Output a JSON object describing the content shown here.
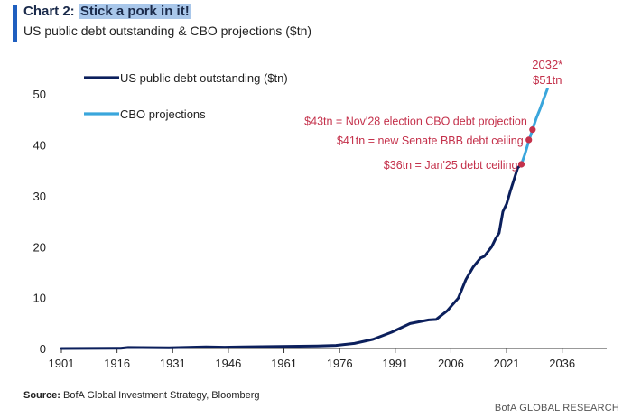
{
  "header": {
    "chart_label": "Chart 2:",
    "title_highlight": "Stick a pork in it!",
    "subtitle": "US public debt outstanding & CBO projections ($tn)"
  },
  "footer": {
    "source_label": "Source:",
    "source_text": "BofA Global Investment Strategy, Bloomberg",
    "brand": "BofA GLOBAL RESEARCH"
  },
  "colors": {
    "actual": "#0b1f5c",
    "projection": "#3aa6dc",
    "annotation": "#c4314b",
    "axis": "#333333"
  },
  "chart_data": {
    "type": "line",
    "title": "US public debt outstanding & CBO projections ($tn)",
    "xlabel": "",
    "ylabel": "",
    "xlim": [
      1901,
      2048
    ],
    "ylim": [
      0,
      55
    ],
    "xticks": [
      "1901",
      "1916",
      "1931",
      "1946",
      "1961",
      "1976",
      "1991",
      "2006",
      "2021",
      "2036"
    ],
    "yticks": [
      "0",
      "10",
      "20",
      "30",
      "40",
      "50"
    ],
    "legend": [
      "US public debt outstanding ($tn)",
      "CBO projections"
    ],
    "series": [
      {
        "name": "US public debt outstanding ($tn)",
        "x": [
          1901,
          1917,
          1919,
          1930,
          1940,
          1945,
          1950,
          1960,
          1970,
          1975,
          1980,
          1985,
          1990,
          1995,
          2000,
          2002,
          2005,
          2008,
          2010,
          2012,
          2014,
          2015,
          2017,
          2018,
          2019,
          2020,
          2021,
          2022,
          2023,
          2024,
          2025
        ],
        "values": [
          0,
          0.05,
          0.2,
          0.15,
          0.3,
          0.25,
          0.3,
          0.4,
          0.5,
          0.6,
          1.0,
          1.8,
          3.2,
          4.9,
          5.6,
          5.7,
          7.4,
          9.9,
          13.5,
          16.0,
          17.8,
          18.1,
          20.0,
          21.5,
          22.7,
          26.9,
          28.4,
          30.9,
          33.2,
          35.5,
          36.2
        ]
      },
      {
        "name": "CBO projections",
        "x": [
          2025,
          2026,
          2027,
          2028,
          2029,
          2030,
          2031,
          2032
        ],
        "values": [
          36.2,
          38.3,
          40.8,
          43.0,
          45.2,
          47.0,
          49.0,
          51.0
        ]
      }
    ],
    "points": [
      {
        "x": 2025,
        "y": 36.2,
        "label": "$36tn = Jan'25 debt ceiling"
      },
      {
        "x": 2027,
        "y": 41.0,
        "label": "$41tn = new Senate BBB debt ceiling"
      },
      {
        "x": 2028,
        "y": 43.0,
        "label": "$43tn = Nov'28 election CBO debt projection"
      }
    ],
    "end_label": {
      "x": 2032,
      "y": 51.0,
      "line1": "2032*",
      "line2": "$51tn"
    }
  }
}
